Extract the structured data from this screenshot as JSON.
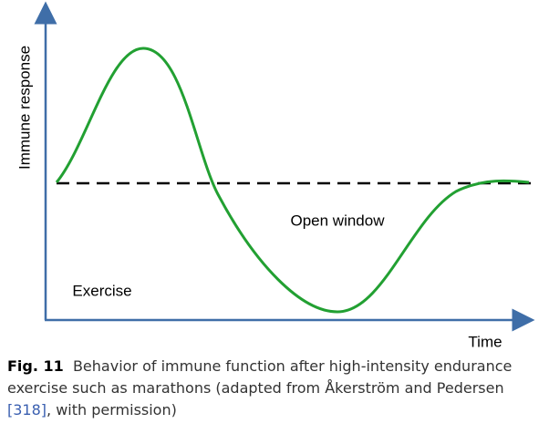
{
  "figure": {
    "y_axis_label": "Immune response",
    "x_axis_label": "Time",
    "annotations": [
      "Open window",
      "Exercise"
    ]
  },
  "caption": {
    "label": "Fig. 11",
    "text": "Behavior of immune function after high-intensity endurance exercise such as marathons (adapted from Åkerström and Pedersen ",
    "reference": "[318]",
    "text_end": ", with permission)"
  }
}
